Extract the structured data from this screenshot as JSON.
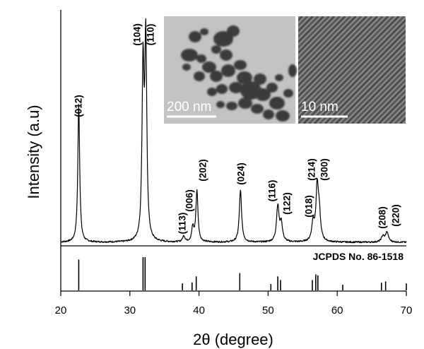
{
  "chart_data": {
    "type": "line",
    "xlabel": "2θ (degree)",
    "ylabel": "Intensity (a.u)",
    "xlim": [
      20,
      70
    ],
    "x_ticks": [
      "20",
      "30",
      "40",
      "50",
      "60",
      "70"
    ],
    "grid": false,
    "reference_label": "JCPDS No. 86-1518",
    "peaks": [
      {
        "x": 22.6,
        "y": 0.7,
        "width": 0.16,
        "label": "(012)"
      },
      {
        "x": 31.9,
        "y": 0.86,
        "width": 0.17,
        "label": "(104)"
      },
      {
        "x": 32.3,
        "y": 1.0,
        "width": 0.17,
        "label": "(110)"
      },
      {
        "x": 37.8,
        "y": 0.03,
        "width": 0.2,
        "label": "(113)"
      },
      {
        "x": 39.1,
        "y": 0.07,
        "width": 0.18,
        "label": "(006)"
      },
      {
        "x": 39.7,
        "y": 0.26,
        "width": 0.18,
        "label": "(202)"
      },
      {
        "x": 46.0,
        "y": 0.26,
        "width": 0.2,
        "label": "(024)"
      },
      {
        "x": 51.4,
        "y": 0.18,
        "width": 0.22,
        "label": "(116)"
      },
      {
        "x": 51.9,
        "y": 0.09,
        "width": 0.22,
        "label": "(122)"
      },
      {
        "x": 56.5,
        "y": 0.09,
        "width": 0.22,
        "label": "(018)"
      },
      {
        "x": 57.1,
        "y": 0.27,
        "width": 0.22,
        "label": "(214)"
      },
      {
        "x": 57.4,
        "y": 0.12,
        "width": 0.22,
        "label": "(300)"
      },
      {
        "x": 66.6,
        "y": 0.03,
        "width": 0.25,
        "label": "(208)"
      },
      {
        "x": 67.2,
        "y": 0.05,
        "width": 0.25,
        "label": "(220)"
      }
    ],
    "reference_sticks": [
      {
        "x": 22.6,
        "y": 0.93
      },
      {
        "x": 31.9,
        "y": 1.0
      },
      {
        "x": 32.2,
        "y": 1.0
      },
      {
        "x": 37.6,
        "y": 0.21
      },
      {
        "x": 39.0,
        "y": 0.24
      },
      {
        "x": 39.6,
        "y": 0.42
      },
      {
        "x": 45.9,
        "y": 0.52
      },
      {
        "x": 50.4,
        "y": 0.19
      },
      {
        "x": 51.4,
        "y": 0.42
      },
      {
        "x": 51.8,
        "y": 0.31
      },
      {
        "x": 56.4,
        "y": 0.31
      },
      {
        "x": 56.9,
        "y": 0.48
      },
      {
        "x": 57.2,
        "y": 0.45
      },
      {
        "x": 60.8,
        "y": 0.17
      },
      {
        "x": 66.4,
        "y": 0.23
      },
      {
        "x": 67.0,
        "y": 0.27
      },
      {
        "x": 70.0,
        "y": 0.21
      }
    ]
  },
  "insets": [
    {
      "name": "tem-image",
      "scale_label": "200 nm"
    },
    {
      "name": "hrtem-image",
      "scale_label": "10 nm"
    }
  ],
  "colors": {
    "line": "#000000",
    "background": "#ffffff",
    "tem_background": "#c3c3c3",
    "particles": "#3a3a3a",
    "hrtem_fringes": "#555555"
  }
}
